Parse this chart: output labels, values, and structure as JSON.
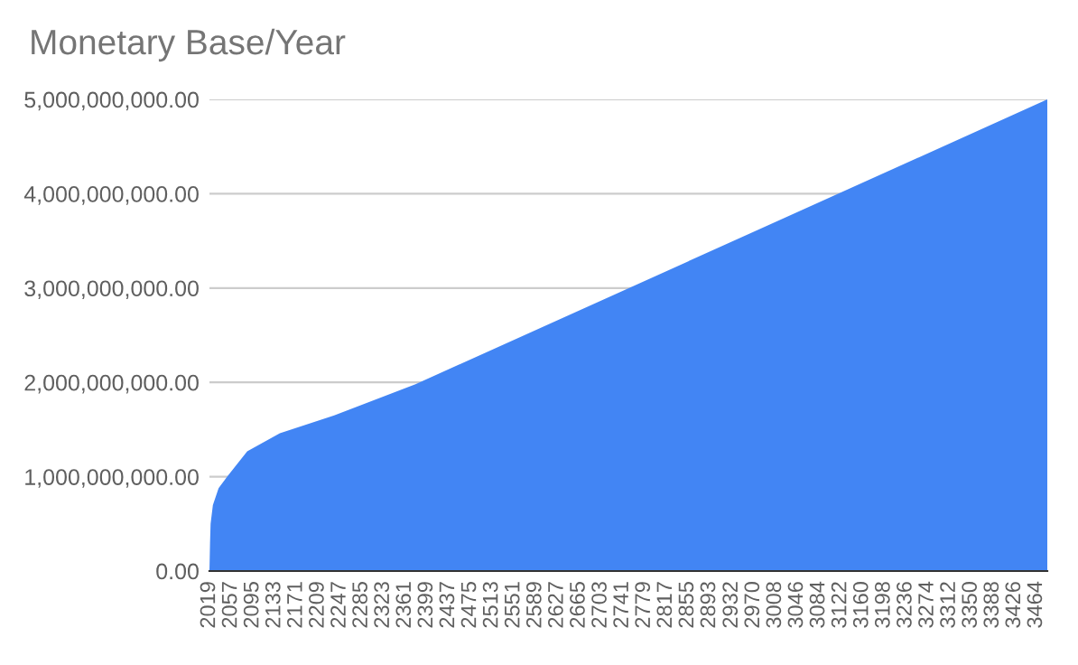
{
  "chart_data": {
    "type": "area",
    "title": "Monetary Base/Year",
    "x": [
      2019,
      2020,
      2021,
      2025,
      2035,
      2050,
      2085,
      2142,
      2237,
      2379,
      3483
    ],
    "series": [
      {
        "color": "#4285f4",
        "values": [
          0,
          300000000,
          500000000,
          700000000,
          880000000,
          1000000000,
          1270000000,
          1460000000,
          1650000000,
          1980000000,
          5000000000
        ]
      }
    ],
    "xlim": [
      2019,
      3483
    ],
    "xticks": [
      2019,
      2057,
      2095,
      2133,
      2171,
      2209,
      2247,
      2285,
      2323,
      2361,
      2399,
      2437,
      2475,
      2513,
      2551,
      2589,
      2627,
      2665,
      2703,
      2741,
      2779,
      2817,
      2855,
      2893,
      2932,
      2970,
      3008,
      3046,
      3084,
      3122,
      3160,
      3198,
      3236,
      3274,
      3312,
      3350,
      3388,
      3426,
      3464
    ],
    "ylim": [
      0,
      5000000000
    ],
    "yticks": [
      {
        "value": 0,
        "label": "0.00"
      },
      {
        "value": 1000000000,
        "label": "1,000,000,000.00"
      },
      {
        "value": 2000000000,
        "label": "2,000,000,000.00"
      },
      {
        "value": 3000000000,
        "label": "3,000,000,000.00"
      },
      {
        "value": 4000000000,
        "label": "4,000,000,000.00"
      },
      {
        "value": 5000000000,
        "label": "5,000,000,000.00"
      }
    ],
    "grid": "y",
    "legend": false
  }
}
